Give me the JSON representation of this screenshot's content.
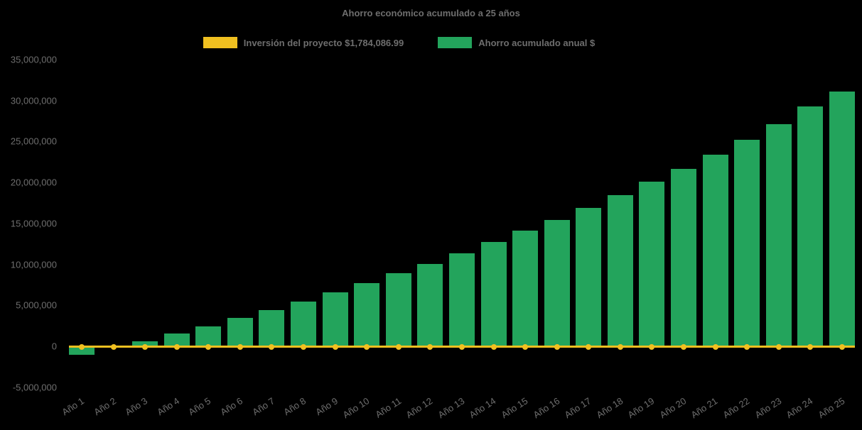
{
  "chart_data": {
    "type": "bar",
    "title": "Ahorro económico acumulado a 25 años",
    "categories": [
      "Año 1",
      "Año 2",
      "Año 3",
      "Año 4",
      "Año 5",
      "Año 6",
      "Año 7",
      "Año 8",
      "Año 9",
      "Año 10",
      "Año 11",
      "Año 12",
      "Año 13",
      "Año 14",
      "Año 15",
      "Año 16",
      "Año 17",
      "Año 18",
      "Año 19",
      "Año 20",
      "Año 21",
      "Año 22",
      "Año 23",
      "Año 24",
      "Año 25"
    ],
    "series": [
      {
        "name": "Inversión del proyecto $1,784,086.99",
        "type": "line",
        "color": "#f0c020",
        "marker": "circle",
        "values": [
          0,
          0,
          0,
          0,
          0,
          0,
          0,
          0,
          0,
          0,
          0,
          0,
          0,
          0,
          0,
          0,
          0,
          0,
          0,
          0,
          0,
          0,
          0,
          0,
          0
        ]
      },
      {
        "name": "Ahorro acumulado anual $",
        "type": "bar",
        "color": "#23a45c",
        "values": [
          -1000000,
          -100000,
          600000,
          1550000,
          2450000,
          3450000,
          4400000,
          5450000,
          6550000,
          7700000,
          8900000,
          10050000,
          11350000,
          12700000,
          14100000,
          15450000,
          16900000,
          18450000,
          20100000,
          21700000,
          23400000,
          25200000,
          27100000,
          29300000,
          31100000
        ]
      }
    ],
    "ylim": [
      -5000000,
      35000000
    ],
    "y_ticks": [
      {
        "value": 35000000,
        "label": "35,000,000"
      },
      {
        "value": 30000000,
        "label": "30,000,000"
      },
      {
        "value": 25000000,
        "label": "25,000,000"
      },
      {
        "value": 20000000,
        "label": "20,000,000"
      },
      {
        "value": 15000000,
        "label": "15,000,000"
      },
      {
        "value": 10000000,
        "label": "10,000,000"
      },
      {
        "value": 5000000,
        "label": "5,000,000"
      },
      {
        "value": 0,
        "label": "0"
      },
      {
        "value": -5000000,
        "label": "-5,000,000"
      }
    ],
    "grid": false,
    "legend_position": "top",
    "background": "#000000",
    "text_color": "#6e6e6e"
  }
}
